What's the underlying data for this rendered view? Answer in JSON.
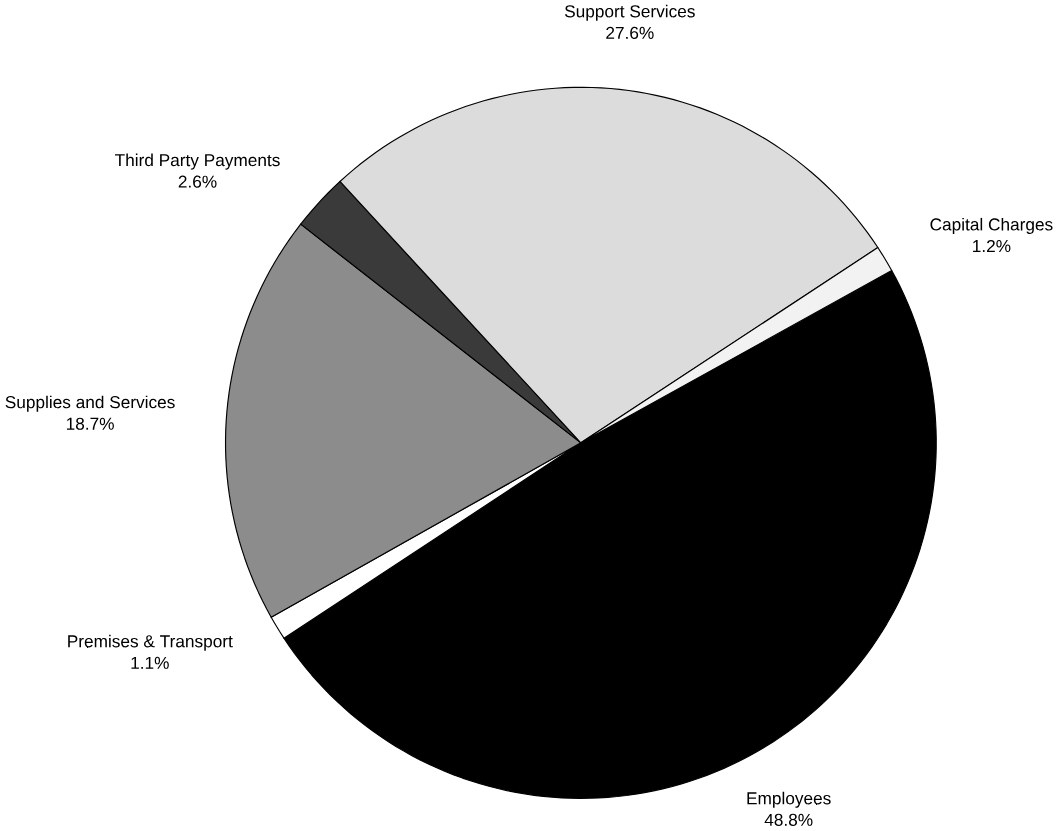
{
  "chart_data": {
    "type": "pie",
    "categories": [
      "Employees",
      "Premises & Transport",
      "Supplies and Services",
      "Third Party Payments",
      "Support Services",
      "Capital Charges"
    ],
    "values": [
      48.8,
      1.1,
      18.7,
      2.6,
      27.6,
      1.2
    ],
    "value_labels": [
      "48.8%",
      "1.1%",
      "18.7%",
      "2.6%",
      "27.6%",
      "1.2%"
    ],
    "colors": [
      "#000000",
      "#ffffff",
      "#8c8c8c",
      "#3a3a3a",
      "#dcdcdc",
      "#f2f2f2"
    ]
  }
}
